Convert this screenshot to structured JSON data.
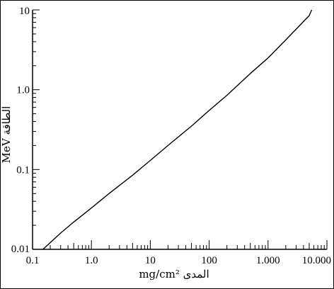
{
  "chart_data": {
    "type": "line",
    "title": "",
    "xlabel": "المدى mg/cm²",
    "ylabel": "الطاقة MeV",
    "x_scale": "log",
    "y_scale": "log",
    "xlim": [
      0.1,
      10000
    ],
    "ylim": [
      0.01,
      10
    ],
    "x_ticks": [
      0.1,
      1,
      10,
      100,
      1000,
      10000
    ],
    "x_tick_labels": [
      "0.1",
      "1.0",
      "10",
      "100",
      "1.000",
      "10.000"
    ],
    "y_ticks": [
      0.01,
      0.1,
      1,
      10
    ],
    "y_tick_labels": [
      "0.01",
      "0.1",
      "1.0",
      "10"
    ],
    "grid": false,
    "legend": "none",
    "series": [
      {
        "color": "#000000",
        "x": [
          0.15,
          0.3,
          0.5,
          1,
          2,
          5,
          10,
          20,
          50,
          100,
          200,
          500,
          1000,
          2000,
          5000,
          5500
        ],
        "y": [
          0.01,
          0.016,
          0.022,
          0.033,
          0.05,
          0.085,
          0.13,
          0.2,
          0.35,
          0.55,
          0.85,
          1.6,
          2.5,
          4.2,
          8.5,
          10
        ]
      }
    ]
  }
}
